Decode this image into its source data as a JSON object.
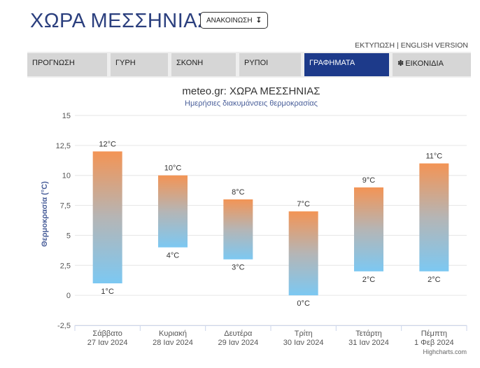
{
  "header": {
    "title": "ΧΩΡΑ ΜΕΣΣΗΝΙΑΣ",
    "announce_label": "ΑΝΑΚΟΙΝΩΣΗ",
    "announce_icon": "down-arrow-icon",
    "print_link": "ΕΚΤΥΠΩΣΗ",
    "separator": "|",
    "english_link": "ENGLISH VERSION"
  },
  "tabs": [
    {
      "label": "ΠΡΟΓΝΩΣΗ",
      "active": false
    },
    {
      "label": "ΓΥΡΗ",
      "active": false
    },
    {
      "label": "ΣΚΟΝΗ",
      "active": false
    },
    {
      "label": "ΡΥΠΟΙ",
      "active": false
    },
    {
      "label": "ΓΡΑΦΗΜΑΤΑ",
      "active": true
    },
    {
      "label": "ΕΙΚΟΝΙΔΙΑ",
      "active": false,
      "icon": "gear-icon"
    }
  ],
  "colors": {
    "title": "#2b3f7e",
    "active_tab": "#1d3a8a",
    "bar_top": "#f39455",
    "bar_mid": "#b5b5b5",
    "bar_bottom": "#7cc8f2",
    "subtitle": "#4a5f9a"
  },
  "chart_data": {
    "type": "columnrange",
    "title": "meteo.gr: ΧΩΡΑ ΜΕΣΣΗΝΙΑΣ",
    "subtitle": "Ημερήσιες διακυμάνσεις θερμοκρασίας",
    "ylabel": "Θερμοκρασία (°C)",
    "ylim": [
      -2.5,
      15
    ],
    "yticks": [
      "-2,5",
      "0",
      "2,5",
      "5",
      "7,5",
      "10",
      "12,5",
      "15"
    ],
    "ytick_values": [
      -2.5,
      0,
      2.5,
      5,
      7.5,
      10,
      12.5,
      15
    ],
    "categories": [
      [
        "Σάββατο",
        "27 Ιαν 2024"
      ],
      [
        "Κυριακή",
        "28 Ιαν 2024"
      ],
      [
        "Δευτέρα",
        "29 Ιαν 2024"
      ],
      [
        "Τρίτη",
        "30 Ιαν 2024"
      ],
      [
        "Τετάρτη",
        "31 Ιαν 2024"
      ],
      [
        "Πέμπτη",
        "1 Φεβ 2024"
      ]
    ],
    "low": [
      1,
      4,
      3,
      0,
      2,
      2
    ],
    "high": [
      12,
      10,
      8,
      7,
      9,
      11
    ],
    "unit": "°C",
    "credits": "Highcharts.com"
  }
}
